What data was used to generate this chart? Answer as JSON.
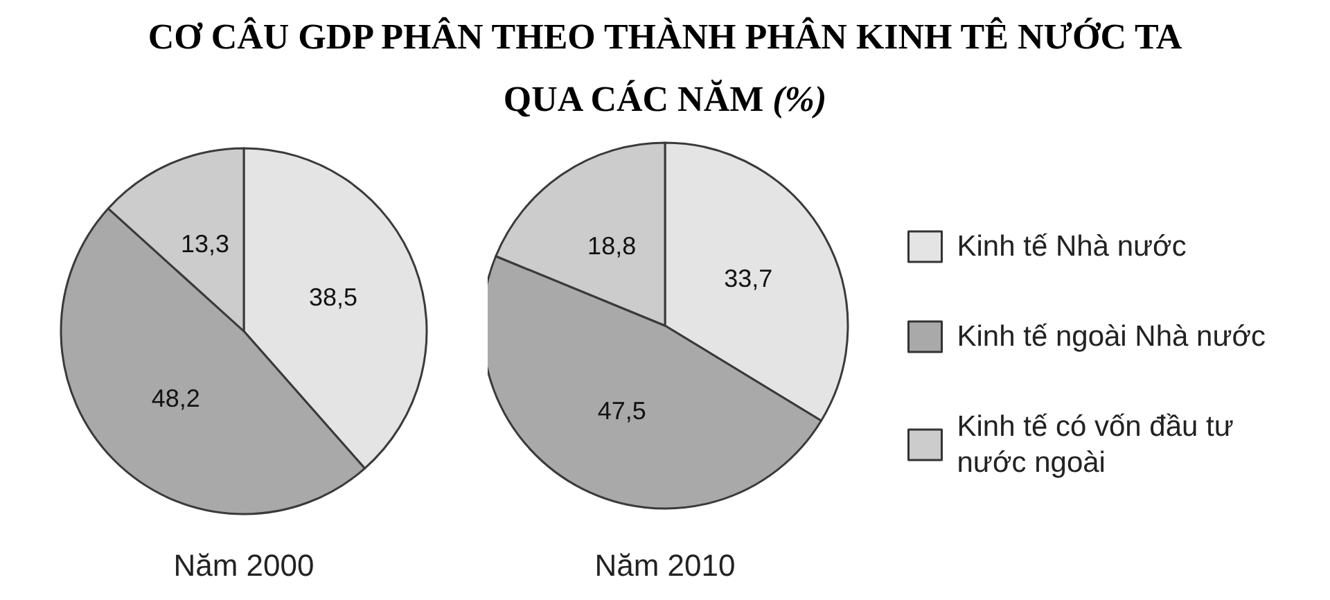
{
  "chart_data": [
    {
      "type": "pie",
      "title": "CƠ CÂU GDP PHÂN THEO THÀNH PHÂN KINH TÊ NƯỚC TA QUA CÁC NĂM (%)",
      "xlabel": "Năm 2000",
      "categories": [
        null,
        null,
        null
      ],
      "values": [
        38.5,
        48.2,
        13.3
      ],
      "colors": [
        "#e4e4e4",
        "#a9a9a9",
        "#cccccc"
      ],
      "value_labels": [
        "38,5",
        "48,2",
        "13,3"
      ]
    },
    {
      "type": "pie",
      "xlabel": "Năm 2010",
      "categories": [
        "Kinh tế Nhà nước",
        "Kinh tế ngoài Nhà nước",
        "Kinh tế có vốn đầu tư nước ngoài"
      ],
      "values": [
        33.7,
        47.5,
        18.8
      ],
      "colors": [
        "#e4e4e4",
        "#a9a9a9",
        "#cccccc"
      ],
      "value_labels": [
        "33,7",
        "47,5",
        "18,8"
      ],
      "legend": "right"
    }
  ]
}
